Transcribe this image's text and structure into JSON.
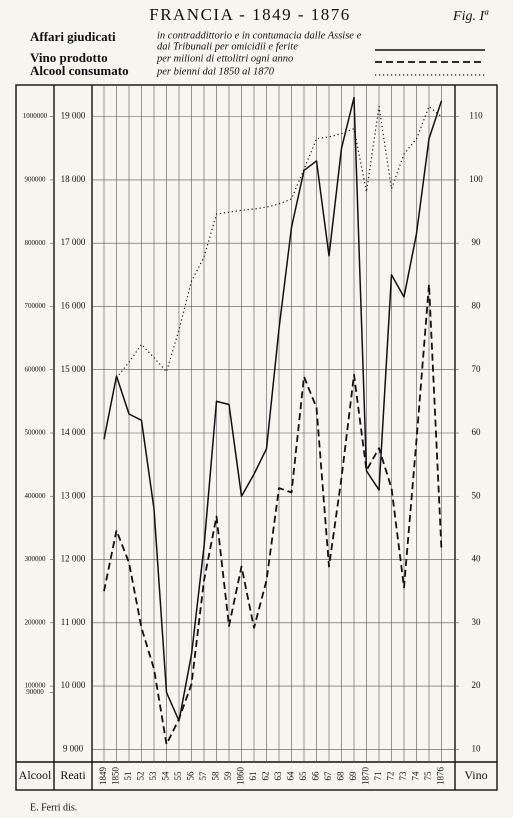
{
  "chart_data": {
    "type": "line",
    "title": "FRANCIA - 1849 - 1876",
    "figure_label": "Fig. Iª",
    "credit": "E. Ferri dis.",
    "categories": [
      "1849",
      "1850",
      "51",
      "52",
      "53",
      "54",
      "55",
      "56",
      "57",
      "58",
      "59",
      "1860",
      "61",
      "62",
      "63",
      "64",
      "65",
      "66",
      "67",
      "68",
      "69",
      "1870",
      "71",
      "72",
      "73",
      "74",
      "75",
      "1876"
    ],
    "ylabel": "Reati",
    "y2label": "Vino",
    "y3label": "Alcool",
    "ylim": [
      8800,
      19500
    ],
    "yticks": [
      {
        "value": 9000,
        "label": "9 000"
      },
      {
        "value": 10000,
        "label": "10 000"
      },
      {
        "value": 11000,
        "label": "11 000"
      },
      {
        "value": 12000,
        "label": "12 000"
      },
      {
        "value": 13000,
        "label": "13 000"
      },
      {
        "value": 14000,
        "label": "14 000"
      },
      {
        "value": 15000,
        "label": "15 000"
      },
      {
        "value": 16000,
        "label": "16 000"
      },
      {
        "value": 17000,
        "label": "17 000"
      },
      {
        "value": 18000,
        "label": "18 000"
      },
      {
        "value": 19000,
        "label": "19 000"
      }
    ],
    "y2lim": [
      8,
      115
    ],
    "y2ticks": [
      10,
      20,
      30,
      40,
      50,
      60,
      70,
      80,
      90,
      100,
      110
    ],
    "y3lim": [
      -20000,
      1050000
    ],
    "y3ticks": [
      90000,
      100000,
      200000,
      300000,
      400000,
      500000,
      600000,
      700000,
      800000,
      900000,
      1000000
    ],
    "grid": true,
    "series": [
      {
        "name": "Affari giudicati",
        "note": [
          "in contraddittorio e in contumacia dalle Assise e",
          "dai Tribunali per omicidii e ferite"
        ],
        "style": "solid",
        "color": "#111111",
        "axis": "y",
        "values": [
          13900,
          14900,
          14300,
          14200,
          12800,
          9900,
          9450,
          10500,
          12200,
          14500,
          14450,
          13000,
          13350,
          13750,
          15650,
          17250,
          18150,
          18300,
          16800,
          18500,
          19300,
          13400,
          13100,
          16500,
          16150,
          17150,
          18650,
          19250
        ]
      },
      {
        "name": "Vino prodotto",
        "note": [
          "per milioni di ettolitri ogni anno"
        ],
        "style": "dashed",
        "color": "#111111",
        "axis": "y2",
        "values": [
          35,
          44.6,
          39.5,
          29.2,
          22.7,
          10.8,
          14.8,
          20.3,
          36.7,
          46.8,
          29.5,
          38.9,
          29.2,
          36.7,
          51.3,
          50.6,
          68.9,
          64,
          38.9,
          52.9,
          69.2,
          54.1,
          57.6,
          51.3,
          35.6,
          58.9,
          83.5,
          41.4
        ]
      },
      {
        "name": "Alcool consumato",
        "note": [
          "per bienni dal 1850 al 1870"
        ],
        "style": "dotted",
        "color": "#111111",
        "axis": "y3",
        "values": [
          null,
          587000,
          612000,
          640000,
          619000,
          597000,
          663000,
          740000,
          778000,
          846000,
          849000,
          852000,
          854000,
          857000,
          862000,
          870000,
          917000,
          965000,
          968000,
          973000,
          981000,
          881000,
          1016000,
          886000,
          941000,
          965000,
          1016000,
          1000000
        ]
      }
    ]
  }
}
